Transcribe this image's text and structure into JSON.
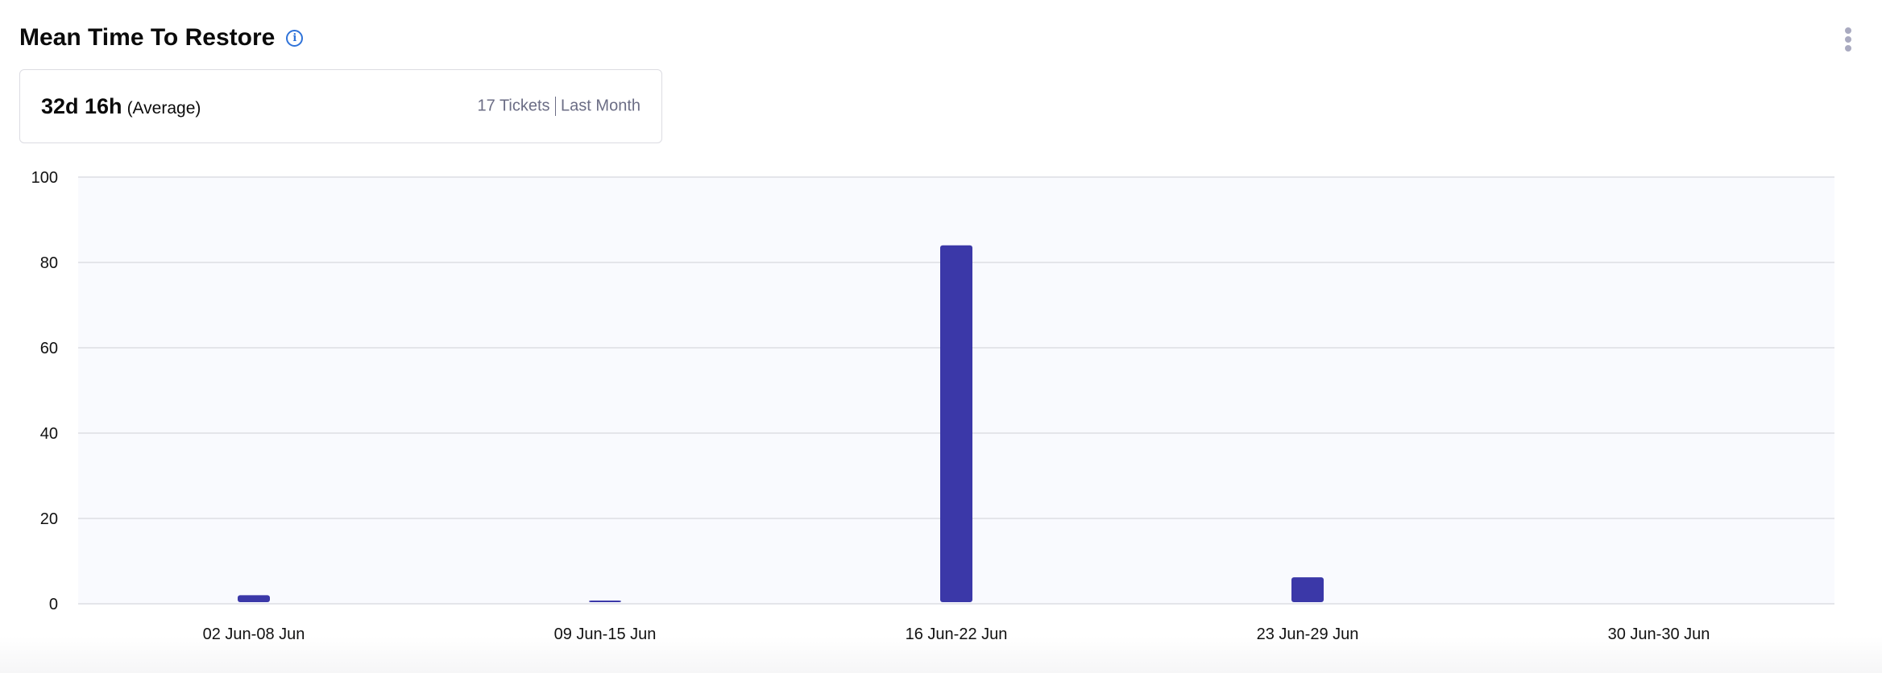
{
  "header": {
    "title": "Mean Time To Restore",
    "info_icon": "info-icon",
    "menu_icon": "kebab-menu-icon"
  },
  "summary": {
    "value": "32d 16h",
    "qualifier": "(Average)",
    "tickets": "17 Tickets",
    "period": "Last Month"
  },
  "colors": {
    "bar": "#3b38a8",
    "plot_bg": "#f9fafe",
    "grid": "#e4e5ea",
    "info": "#2f73d9"
  },
  "chart_data": {
    "type": "bar",
    "categories": [
      "02 Jun-08 Jun",
      "09 Jun-15 Jun",
      "16 Jun-22 Jun",
      "23 Jun-29 Jun",
      "30 Jun-30 Jun"
    ],
    "values": [
      2,
      0.6,
      84,
      6.2,
      0
    ],
    "ylim": [
      0,
      100
    ],
    "yticks": [
      "0",
      "20",
      "40",
      "60",
      "80",
      "100"
    ],
    "grid": true,
    "title": "",
    "xlabel": "",
    "ylabel": ""
  }
}
